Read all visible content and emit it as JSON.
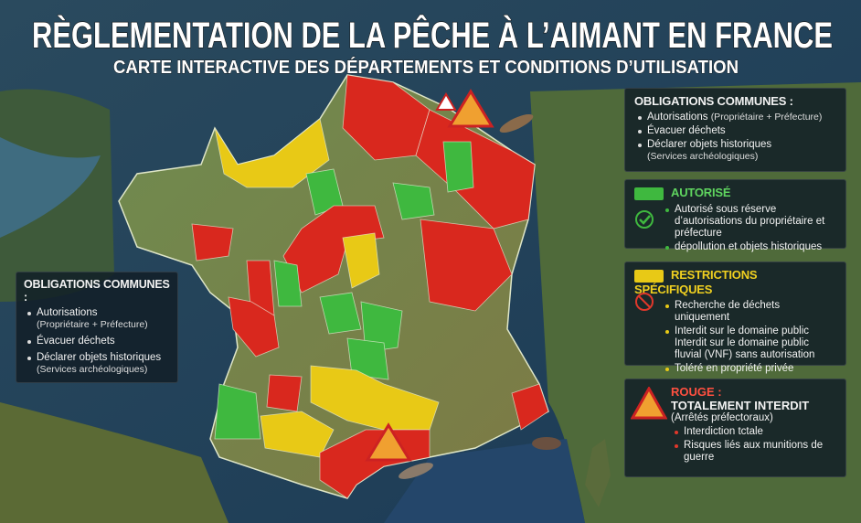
{
  "header": {
    "title": "RÈGLEMENTATION DE LA PÊCHE À L’AIMANT EN FRANCE",
    "subtitle": "CARTE INTERACTIVE DES DÉPARTEMENTS ET CONDITIONS D’UTILISATION"
  },
  "right_obligations": {
    "title": "OBLIGATIONS COMMUNES :",
    "items": [
      {
        "text": "Autorisations",
        "note": "(Propriétaire + Préfecture)"
      },
      {
        "text": "Évacuer déchets"
      },
      {
        "text": "Déclarer objets historiques",
        "note": "(Services archéologiques)"
      }
    ]
  },
  "left_obligations": {
    "title": "OBLIGATIONS COMMUNES :",
    "items": [
      {
        "text": "Autorisations",
        "note": "(Propriétaire + Préfecture)"
      },
      {
        "text": "Évacuer déchets"
      },
      {
        "text": "Déclarer objets historiques",
        "note": "(Services archéologiques)"
      }
    ]
  },
  "legend": {
    "green": {
      "title": "AUTORISÉ",
      "items": [
        "Autorisé sous réserve d’autorisations du propriétaire et préfecture",
        "dépollution et objets historiques"
      ]
    },
    "yellow": {
      "title": "RESTRICTIONS SPÉCIFIQUES",
      "items": [
        "Recherche de déchets uniquement",
        "Interdit sur le domaine public Interdit sur le domaine public fluvial (VNF) sans autorisation",
        "Toléré en propriété privée"
      ]
    },
    "red": {
      "label": "ROUGE :",
      "title": "TOTALEMENT INTERDIT",
      "note": "(Arrêtés préfectoraux)",
      "items": [
        "Interdiction tctale",
        "Risques liés aux munitions de guerre"
      ]
    }
  }
}
